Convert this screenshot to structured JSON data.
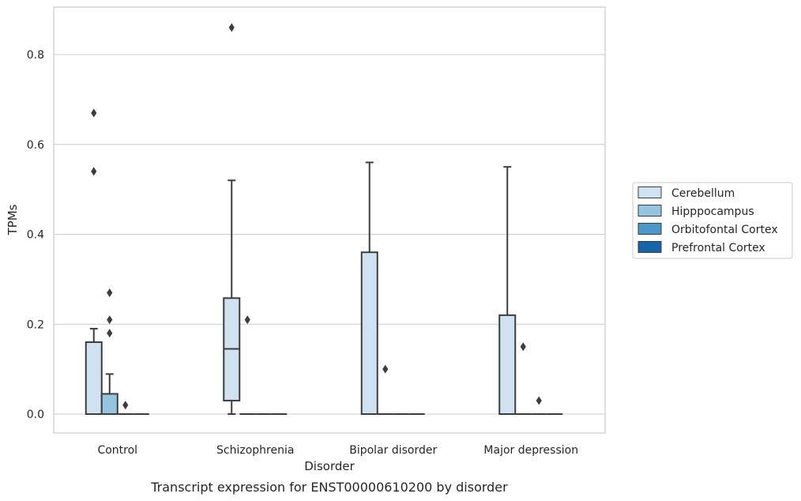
{
  "chart_data": {
    "type": "box",
    "title": "",
    "caption": "Transcript expression for ENST00000610200 by disorder",
    "xlabel": "Disorder",
    "ylabel": "TPMs",
    "ylim": [
      -0.042,
      0.905
    ],
    "yticks": [
      "0.0",
      "0.2",
      "0.4",
      "0.6",
      "0.8"
    ],
    "grid": "horizontal",
    "legend_position": "right",
    "categories": [
      "Control",
      "Schizophrenia",
      "Bipolar disorder",
      "Major depression"
    ],
    "series": [
      {
        "name": "Cerebellum",
        "color": "#d0e1f2",
        "boxes": [
          {
            "q1": 0,
            "median": 0,
            "q3": 0.16,
            "whisker_low": 0,
            "whisker_high": 0.19,
            "outliers": [
              0.67,
              0.54
            ]
          },
          {
            "q1": 0.03,
            "median": 0.145,
            "q3": 0.258,
            "whisker_low": 0,
            "whisker_high": 0.52,
            "outliers": [
              0.86
            ]
          },
          {
            "q1": 0,
            "median": 0,
            "q3": 0.36,
            "whisker_low": 0,
            "whisker_high": 0.56,
            "outliers": []
          },
          {
            "q1": 0,
            "median": 0,
            "q3": 0.22,
            "whisker_low": 0,
            "whisker_high": 0.55,
            "outliers": []
          }
        ]
      },
      {
        "name": "Hipppocampus",
        "color": "#94c4df",
        "boxes": [
          {
            "q1": 0,
            "median": 0,
            "q3": 0.045,
            "whisker_low": 0,
            "whisker_high": 0.089,
            "outliers": [
              0.27,
              0.21,
              0.18
            ]
          },
          {
            "q1": 0,
            "median": 0,
            "q3": 0,
            "whisker_low": 0,
            "whisker_high": 0,
            "outliers": [
              0.21
            ]
          },
          {
            "q1": 0,
            "median": 0,
            "q3": 0,
            "whisker_low": 0,
            "whisker_high": 0,
            "outliers": [
              0.1
            ]
          },
          {
            "q1": 0,
            "median": 0,
            "q3": 0,
            "whisker_low": 0,
            "whisker_high": 0,
            "outliers": [
              0.15
            ]
          }
        ]
      },
      {
        "name": "Orbitofontal Cortex",
        "color": "#4a98c9",
        "boxes": [
          {
            "q1": 0,
            "median": 0,
            "q3": 0,
            "whisker_low": 0,
            "whisker_high": 0,
            "outliers": [
              0.02
            ]
          },
          {
            "q1": 0,
            "median": 0,
            "q3": 0,
            "whisker_low": 0,
            "whisker_high": 0,
            "outliers": []
          },
          {
            "q1": 0,
            "median": 0,
            "q3": 0,
            "whisker_low": 0,
            "whisker_high": 0,
            "outliers": []
          },
          {
            "q1": 0,
            "median": 0,
            "q3": 0,
            "whisker_low": 0,
            "whisker_high": 0,
            "outliers": [
              0.03
            ]
          }
        ]
      },
      {
        "name": "Prefrontal Cortex",
        "color": "#1764ab",
        "boxes": [
          {
            "q1": 0,
            "median": 0,
            "q3": 0,
            "whisker_low": 0,
            "whisker_high": 0,
            "outliers": []
          },
          {
            "q1": 0,
            "median": 0,
            "q3": 0,
            "whisker_low": 0,
            "whisker_high": 0,
            "outliers": []
          },
          {
            "q1": 0,
            "median": 0,
            "q3": 0,
            "whisker_low": 0,
            "whisker_high": 0,
            "outliers": []
          },
          {
            "q1": 0,
            "median": 0,
            "q3": 0,
            "whisker_low": 0,
            "whisker_high": 0,
            "outliers": []
          }
        ]
      }
    ]
  }
}
